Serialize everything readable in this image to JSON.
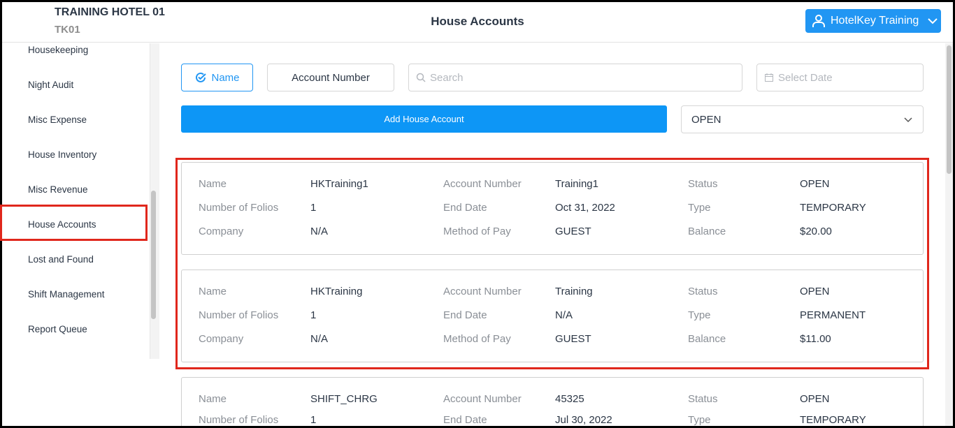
{
  "header": {
    "hotel_name": "TRAINING HOTEL 01",
    "hotel_code": "TK01",
    "title": "House Accounts",
    "user": "HotelKey Training"
  },
  "sidebar": {
    "items": [
      {
        "label": "Housekeeping"
      },
      {
        "label": "Night Audit"
      },
      {
        "label": "Misc Expense"
      },
      {
        "label": "House Inventory"
      },
      {
        "label": "Misc Revenue"
      },
      {
        "label": "House Accounts",
        "active": true
      },
      {
        "label": "Lost and Found"
      },
      {
        "label": "Shift Management"
      },
      {
        "label": "Report Queue"
      }
    ]
  },
  "filters": {
    "name_toggle": "Name",
    "account_number_toggle": "Account Number",
    "search_placeholder": "Search",
    "date_placeholder": "Select Date",
    "add_button": "Add House Account",
    "status_select": "OPEN"
  },
  "labels": {
    "name": "Name",
    "folios": "Number of Folios",
    "company": "Company",
    "account_number": "Account Number",
    "end_date": "End Date",
    "method": "Method of Pay",
    "status": "Status",
    "type": "Type",
    "balance": "Balance"
  },
  "accounts": [
    {
      "name": "HKTraining1",
      "folios": "1",
      "company": "N/A",
      "account_number": "Training1",
      "end_date": "Oct 31, 2022",
      "method": "GUEST",
      "status": "OPEN",
      "type": "TEMPORARY",
      "balance": "$20.00"
    },
    {
      "name": "HKTraining",
      "folios": "1",
      "company": "N/A",
      "account_number": "Training",
      "end_date": "N/A",
      "method": "GUEST",
      "status": "OPEN",
      "type": "PERMANENT",
      "balance": "$11.00"
    },
    {
      "name": "SHIFT_CHRG",
      "folios": "1",
      "company": "",
      "account_number": "45325",
      "end_date": "Jul 30, 2022",
      "method": "",
      "status": "OPEN",
      "type": "TEMPORARY",
      "balance": ""
    }
  ],
  "colors": {
    "accent": "#0d96f6",
    "highlight": "#e0271c"
  }
}
